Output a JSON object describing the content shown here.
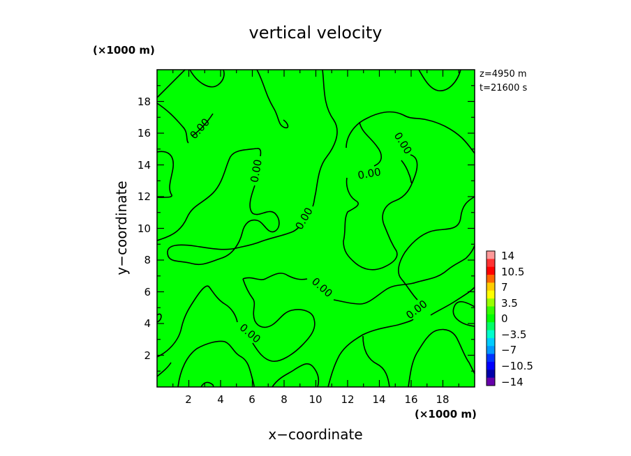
{
  "chart_data": {
    "type": "contour",
    "title": "vertical velocity",
    "xlabel": "x−coordinate",
    "ylabel": "y−coordinate",
    "x_unit": "(×1000 m)",
    "y_unit": "(×1000 m)",
    "xlim": [
      0,
      20
    ],
    "ylim": [
      0,
      20
    ],
    "xticks": [
      "2",
      "4",
      "6",
      "8",
      "10",
      "12",
      "14",
      "16",
      "18"
    ],
    "yticks": [
      "2",
      "4",
      "6",
      "8",
      "10",
      "12",
      "14",
      "16",
      "18"
    ],
    "info": [
      "z=4950  m",
      "t=21600  s"
    ],
    "field_color": "#00ff00",
    "contour_labels": [
      "0.00",
      "0.00",
      "0.00",
      "0.00",
      "0.00",
      "0.00",
      "0.00"
    ],
    "colorbar": {
      "labels": [
        "14",
        "10.5",
        "7",
        "3.5",
        "0",
        "−3.5",
        "−7",
        "−10.5",
        "−14"
      ],
      "colors": [
        "#ff9999",
        "#ff3333",
        "#ff0000",
        "#ff6600",
        "#ffcc00",
        "#ffff00",
        "#99ff00",
        "#33ff00",
        "#00ff00",
        "#00ff66",
        "#00ffcc",
        "#00ccff",
        "#0099ff",
        "#0033ff",
        "#0000ff",
        "#0000aa",
        "#6600aa"
      ]
    }
  }
}
